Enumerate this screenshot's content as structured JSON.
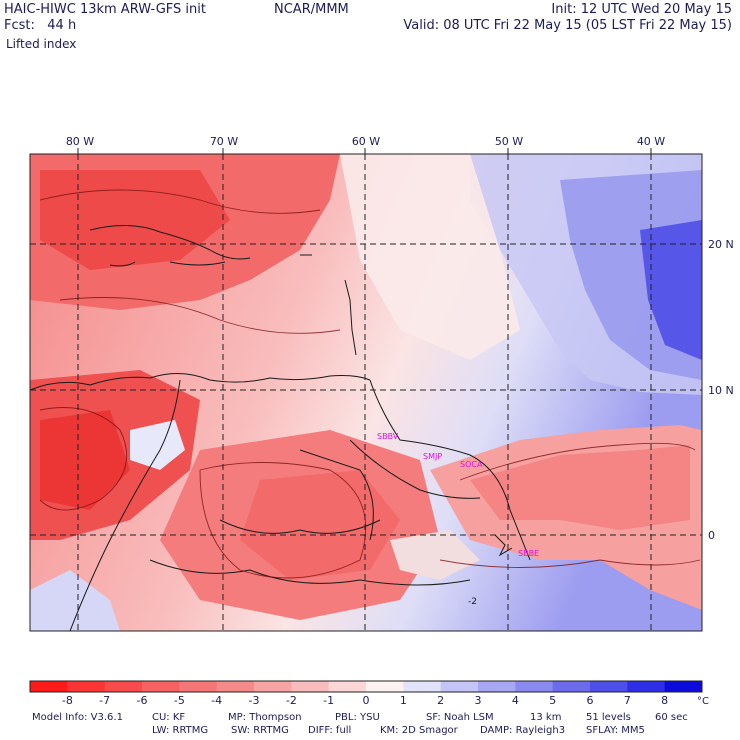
{
  "header": {
    "model_title": "HAIC-HIWC 13km ARW-GFS init",
    "center": "NCAR/MMM",
    "forecast": "Fcst:   44 h",
    "field": "Lifted index",
    "init": "Init: 12 UTC Wed 20 May 15",
    "valid": "Valid: 08 UTC Fri 22 May 15 (05 LST Fri 22 May 15)"
  },
  "map": {
    "lon_labels": [
      "80 W",
      "70 W",
      "60 W",
      "50 W",
      "40 W"
    ],
    "lat_labels": [
      "20 N",
      "10 N",
      "0"
    ],
    "stations": [
      "SBBV",
      "SMJP",
      "SOCA",
      "SBBE"
    ],
    "contour_label": "-2",
    "colors": {
      "negative_strong": "#ee2b2b",
      "negative_mid": "#f47a7a",
      "negative_light": "#f9c2c2",
      "neutral": "#fdf0f0",
      "positive_light": "#dcdcf6",
      "positive_mid": "#8f8ff0",
      "positive_strong": "#3a3ae6",
      "station_text": "#e010e0"
    }
  },
  "colorbar": {
    "ticks": [
      "-8",
      "-7",
      "-6",
      "-5",
      "-4",
      "-3",
      "-2",
      "-1",
      "0",
      "1",
      "2",
      "3",
      "4",
      "5",
      "6",
      "7",
      "8"
    ],
    "unit": "°C",
    "colors": [
      "#ff1a1a",
      "#fb3434",
      "#f84b4b",
      "#f66262",
      "#f47676",
      "#f48a8a",
      "#f7a4a4",
      "#f9bcbc",
      "#fcd7d7",
      "#fdf2f2",
      "#e2e2fb",
      "#c4c4f6",
      "#a7a7f3",
      "#8989f0",
      "#6b6bec",
      "#4e4ee9",
      "#2e2ee6",
      "#0b0bdb"
    ]
  },
  "footer": {
    "line1": [
      "Model Info: V3.6.1",
      "CU: KF",
      "MP: Thompson",
      "PBL: YSU",
      "SF: Noah LSM",
      "13 km",
      "51 levels",
      "60 sec"
    ],
    "line2": [
      "LW: RRTMG",
      "SW: RRTMG",
      "DIFF: full",
      "KM: 2D Smagor",
      "DAMP: Rayleigh3",
      "SFLAY: MM5"
    ]
  }
}
